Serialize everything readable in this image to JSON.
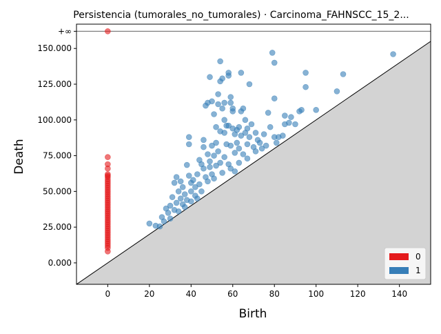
{
  "chart_data": {
    "type": "scatter",
    "title": "Persistencia (tumorales_no_tumorales) · Carcinoma_FAHNSCC_15_2...",
    "xlabel": "Birth",
    "ylabel": "Death",
    "xlim": [
      -15,
      155
    ],
    "ylim": [
      -15000,
      167000
    ],
    "x_ticks": [
      0,
      20,
      40,
      60,
      80,
      100,
      120,
      140
    ],
    "x_tick_labels": [
      "0",
      "20",
      "40",
      "60",
      "80",
      "100",
      "120",
      "140"
    ],
    "y_ticks": [
      0,
      25000,
      50000,
      75000,
      100000,
      125000,
      150000
    ],
    "y_tick_labels": [
      "0.000",
      "25.000",
      "50.000",
      "75.000",
      "100.000",
      "125.000",
      "150.000"
    ],
    "infinity_value": 162000,
    "infinity_label": "+∞",
    "grid": false,
    "legend_position": "bottom-right",
    "series": [
      {
        "name": "0",
        "color": "#e41a1c",
        "points": [
          [
            0,
            162000
          ],
          [
            0,
            74000
          ],
          [
            0,
            69000
          ],
          [
            0,
            66000
          ],
          [
            0,
            62000
          ],
          [
            0,
            61000
          ],
          [
            0,
            60000
          ],
          [
            0,
            58500
          ],
          [
            0,
            57000
          ],
          [
            0,
            55500
          ],
          [
            0,
            54000
          ],
          [
            0,
            52500
          ],
          [
            0,
            51000
          ],
          [
            0,
            49500
          ],
          [
            0,
            48000
          ],
          [
            0,
            46500
          ],
          [
            0,
            45000
          ],
          [
            0,
            43500
          ],
          [
            0,
            42000
          ],
          [
            0,
            40500
          ],
          [
            0,
            39000
          ],
          [
            0,
            37500
          ],
          [
            0,
            36000
          ],
          [
            0,
            34500
          ],
          [
            0,
            33000
          ],
          [
            0,
            31500
          ],
          [
            0,
            30000
          ],
          [
            0,
            28500
          ],
          [
            0,
            27000
          ],
          [
            0,
            25500
          ],
          [
            0,
            24000
          ],
          [
            0,
            22500
          ],
          [
            0,
            21000
          ],
          [
            0,
            19500
          ],
          [
            0,
            18000
          ],
          [
            0,
            16500
          ],
          [
            0,
            15000
          ],
          [
            0,
            13500
          ],
          [
            0,
            12000
          ],
          [
            0,
            10500
          ],
          [
            0,
            8000
          ]
        ]
      },
      {
        "name": "1",
        "color": "#377eb8",
        "points": [
          [
            20,
            27500
          ],
          [
            23,
            26000
          ],
          [
            25,
            25500
          ],
          [
            26,
            32000
          ],
          [
            27,
            29000
          ],
          [
            28,
            38000
          ],
          [
            29,
            35000
          ],
          [
            30,
            40000
          ],
          [
            30,
            31000
          ],
          [
            31,
            46000
          ],
          [
            32,
            37000
          ],
          [
            32,
            56000
          ],
          [
            33,
            60000
          ],
          [
            33,
            42000
          ],
          [
            34,
            50000
          ],
          [
            34,
            36000
          ],
          [
            35,
            57000
          ],
          [
            35,
            45000
          ],
          [
            36,
            53000
          ],
          [
            36,
            41000
          ],
          [
            37,
            48000
          ],
          [
            37,
            39000
          ],
          [
            38,
            68500
          ],
          [
            38,
            44000
          ],
          [
            39,
            88000
          ],
          [
            39,
            83000
          ],
          [
            39,
            61000
          ],
          [
            40,
            56000
          ],
          [
            40,
            50000
          ],
          [
            40,
            43000
          ],
          [
            41,
            58000
          ],
          [
            42,
            47000
          ],
          [
            42,
            53000
          ],
          [
            43,
            62000
          ],
          [
            43,
            45000
          ],
          [
            44,
            72000
          ],
          [
            44,
            55000
          ],
          [
            45,
            69000
          ],
          [
            45,
            50000
          ],
          [
            46,
            86000
          ],
          [
            46,
            81000
          ],
          [
            46,
            66000
          ],
          [
            47,
            110000
          ],
          [
            47,
            60000
          ],
          [
            48,
            112000
          ],
          [
            48,
            76000
          ],
          [
            48,
            57000
          ],
          [
            49,
            130000
          ],
          [
            49,
            67000
          ],
          [
            49,
            71000
          ],
          [
            50,
            113000
          ],
          [
            50,
            82000
          ],
          [
            50,
            62000
          ],
          [
            51,
            104000
          ],
          [
            51,
            75000
          ],
          [
            51,
            59000
          ],
          [
            52,
            95000
          ],
          [
            52,
            84000
          ],
          [
            52,
            68000
          ],
          [
            53,
            118000
          ],
          [
            53,
            111000
          ],
          [
            53,
            78000
          ],
          [
            54,
            141000
          ],
          [
            54,
            127000
          ],
          [
            54,
            92000
          ],
          [
            54,
            70000
          ],
          [
            55,
            129000
          ],
          [
            55,
            108000
          ],
          [
            55,
            63000
          ],
          [
            56,
            112000
          ],
          [
            56,
            100000
          ],
          [
            56,
            91000
          ],
          [
            56,
            74000
          ],
          [
            57,
            96000
          ],
          [
            57,
            83000
          ],
          [
            58,
            133000
          ],
          [
            58,
            131000
          ],
          [
            58,
            96000
          ],
          [
            58,
            69000
          ],
          [
            59,
            116000
          ],
          [
            59,
            112000
          ],
          [
            59,
            82000
          ],
          [
            59,
            66000
          ],
          [
            60,
            108000
          ],
          [
            60,
            106000
          ],
          [
            60,
            94000
          ],
          [
            61,
            90000
          ],
          [
            61,
            77000
          ],
          [
            61,
            64000
          ],
          [
            62,
            93000
          ],
          [
            62,
            84000
          ],
          [
            63,
            95000
          ],
          [
            63,
            80000
          ],
          [
            63,
            70000
          ],
          [
            64,
            133000
          ],
          [
            64,
            106000
          ],
          [
            64,
            89000
          ],
          [
            65,
            108000
          ],
          [
            65,
            76000
          ],
          [
            66,
            100000
          ],
          [
            66,
            91000
          ],
          [
            67,
            94000
          ],
          [
            67,
            83000
          ],
          [
            67,
            73000
          ],
          [
            68,
            125000
          ],
          [
            68,
            88000
          ],
          [
            69,
            97000
          ],
          [
            70,
            81000
          ],
          [
            71,
            91000
          ],
          [
            71,
            78000
          ],
          [
            72,
            86000
          ],
          [
            73,
            84000
          ],
          [
            74,
            80000
          ],
          [
            75,
            90000
          ],
          [
            76,
            82000
          ],
          [
            77,
            105000
          ],
          [
            78,
            95000
          ],
          [
            79,
            147000
          ],
          [
            80,
            140000
          ],
          [
            80,
            115000
          ],
          [
            80,
            88000
          ],
          [
            81,
            84000
          ],
          [
            82,
            88000
          ],
          [
            84,
            89000
          ],
          [
            85,
            97000
          ],
          [
            85,
            103000
          ],
          [
            87,
            98000
          ],
          [
            88,
            102000
          ],
          [
            90,
            97000
          ],
          [
            92,
            106000
          ],
          [
            93,
            107000
          ],
          [
            95,
            123000
          ],
          [
            95,
            133000
          ],
          [
            100,
            107000
          ],
          [
            110,
            120000
          ],
          [
            113,
            132000
          ],
          [
            137,
            146000
          ]
        ]
      }
    ]
  }
}
